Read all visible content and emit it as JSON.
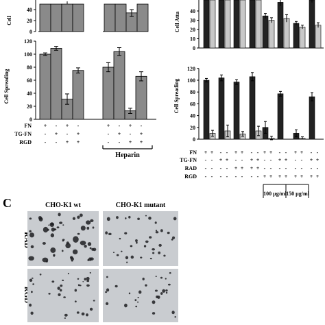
{
  "figure": {
    "panel_c_letter": "C",
    "heparin_label": "Heparin",
    "conc1_label": "100 µg/ml",
    "conc2_label": "150 µg/ml",
    "micrograph_cols": [
      "CHO-K1 wt",
      "CHO-K1 mutant"
    ],
    "micrograph_rows": [
      "RAD",
      "RGD"
    ],
    "colors": {
      "gray_bar": "#8a8a8a",
      "dark_bar": "#222222",
      "light_bar": "#c8c8c8",
      "micro_bg": "#c9ccd0",
      "cell": "#1e1e22"
    }
  },
  "chart_data": [
    {
      "id": "left-top",
      "type": "bar",
      "ylabel": "Cell",
      "yticks": [
        0,
        20,
        40
      ],
      "ylim": [
        0,
        50
      ],
      "note": "partially visible panel, only bottom portion shown",
      "groups": [
        {
          "values": [
            50,
            50,
            50,
            50
          ]
        },
        {
          "values": [
            50,
            50,
            34,
            50
          ]
        }
      ]
    },
    {
      "id": "left-spreading",
      "type": "bar",
      "ylabel": "Cell Spreading",
      "yticks": [
        0,
        20,
        40,
        60,
        80,
        100,
        120
      ],
      "ylim": [
        0,
        120
      ],
      "condition_rows": [
        {
          "label": "FN",
          "marks": [
            "+",
            "-",
            "+",
            "-",
            "+",
            "-",
            "+",
            "-"
          ]
        },
        {
          "label": "TG-FN",
          "marks": [
            "-",
            "+",
            "-",
            "+",
            "-",
            "+",
            "-",
            "+"
          ]
        },
        {
          "label": "RGD",
          "marks": [
            "-",
            "-",
            "+",
            "+",
            "-",
            "-",
            "+",
            "+"
          ]
        }
      ],
      "values": [
        100,
        109,
        31,
        75,
        80,
        104,
        13,
        66
      ],
      "errors": [
        2,
        3,
        8,
        4,
        7,
        6,
        4,
        7
      ]
    },
    {
      "id": "right-top",
      "type": "bar",
      "ylabel": "Cell Atta",
      "yticks": [
        0,
        10,
        20,
        30,
        40
      ],
      "ylim": [
        0,
        78
      ],
      "note": "partially visible panel, only bottom portion shown",
      "series": [
        {
          "values": [
            78,
            78,
            78,
            78,
            52,
            74,
            40,
            78
          ]
        },
        {
          "values": [
            78,
            78,
            78,
            78,
            45,
            48,
            34,
            37
          ]
        }
      ],
      "errors": [
        0,
        0,
        0,
        0,
        4,
        6,
        3,
        4
      ]
    },
    {
      "id": "right-spreading",
      "type": "bar",
      "ylabel": "Cell Spreading",
      "yticks": [
        0,
        20,
        40,
        60,
        80,
        100,
        120
      ],
      "ylim": [
        0,
        120
      ],
      "condition_rows": [
        {
          "label": "FN",
          "marks": [
            "+",
            "+",
            "-",
            "-",
            "+",
            "+",
            "-",
            "-",
            "+",
            "+",
            "-",
            "-",
            "+",
            "+",
            "-",
            "-"
          ]
        },
        {
          "label": "TG-FN",
          "marks": [
            "-",
            "-",
            "+",
            "+",
            "-",
            "-",
            "+",
            "+",
            "-",
            "-",
            "+",
            "+",
            "-",
            "-",
            "+",
            "+"
          ]
        },
        {
          "label": "RAD",
          "marks": [
            "-",
            "-",
            "-",
            "-",
            "+",
            "+",
            "+",
            "+",
            "-",
            "-",
            "-",
            "-",
            "-",
            "-",
            "-",
            "-"
          ]
        },
        {
          "label": "RGD",
          "marks": [
            "-",
            "-",
            "-",
            "-",
            "-",
            "-",
            "-",
            "-",
            "+",
            "+",
            "+",
            "+",
            "+",
            "+",
            "+",
            "+"
          ]
        }
      ],
      "series": [
        {
          "values": [
            100,
            104,
            97,
            106,
            20,
            77,
            10,
            72
          ]
        },
        {
          "values": [
            10,
            14,
            9,
            14,
            2,
            0,
            2,
            0
          ]
        }
      ],
      "errors": [
        [
          3,
          5,
          4,
          7,
          10,
          4,
          6,
          7
        ],
        [
          5,
          10,
          4,
          8,
          3,
          0,
          2,
          0
        ]
      ]
    }
  ]
}
